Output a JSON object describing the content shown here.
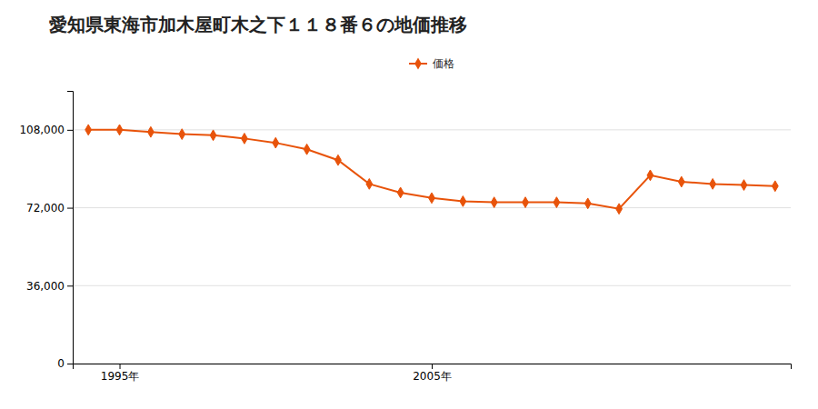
{
  "chart_data": {
    "type": "line",
    "title": "愛知県東海市加木屋町木之下１１８番６の地価推移",
    "x": [
      1994,
      1995,
      1996,
      1997,
      1998,
      1999,
      2000,
      2001,
      2002,
      2003,
      2004,
      2005,
      2006,
      2007,
      2008,
      2009,
      2010,
      2011,
      2012,
      2013,
      2014,
      2015,
      2016
    ],
    "series": [
      {
        "name": "価格",
        "color": "#e8530a",
        "marker": "diamond",
        "values": [
          108000,
          108000,
          107000,
          106000,
          105500,
          104000,
          102000,
          99000,
          94000,
          83000,
          79000,
          76500,
          75000,
          74500,
          74500,
          74500,
          74000,
          71500,
          87000,
          84000,
          83000,
          82500,
          82000
        ]
      }
    ],
    "xlim": [
      1993.5,
      2016.5
    ],
    "xticks": [
      {
        "value": 1995,
        "label": "1995年"
      },
      {
        "value": 2005,
        "label": "2005年"
      }
    ],
    "ylim": [
      0,
      126000
    ],
    "yticks": [
      0,
      {
        "value": 36000,
        "label": "36,000"
      },
      {
        "value": 72000,
        "label": "72,000"
      },
      {
        "value": 108000,
        "label": "108,000"
      }
    ],
    "grid": "y",
    "legend": "top"
  }
}
